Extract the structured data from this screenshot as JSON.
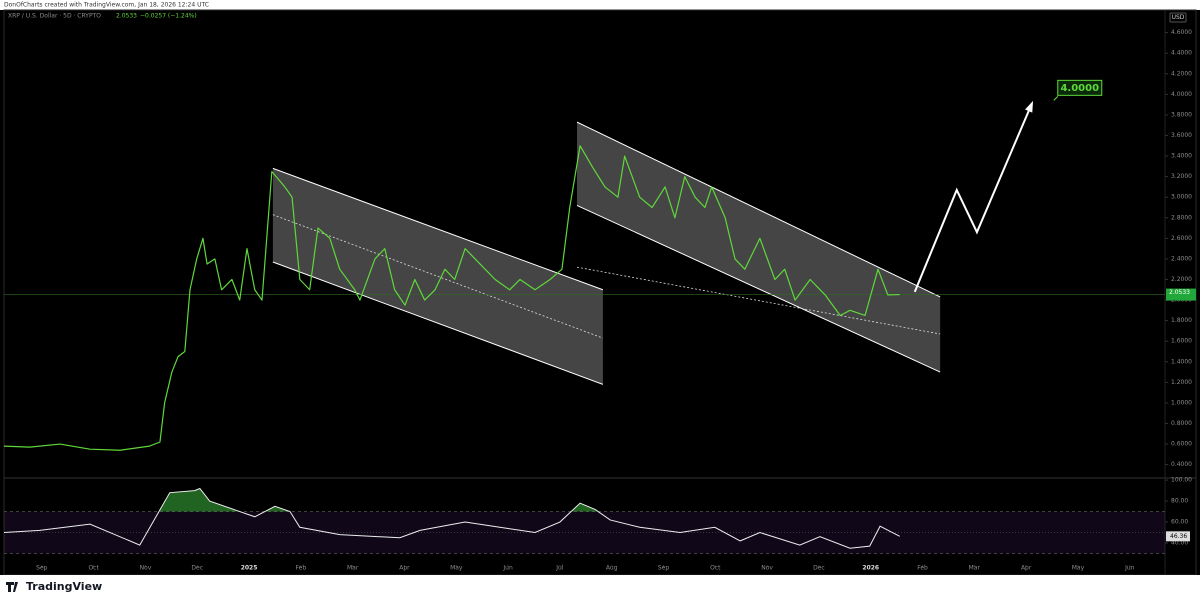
{
  "chart_data": {
    "type": "line",
    "credit": "DonOfCharts created with TradingView.com, Jan 18, 2026 12:24 UTC",
    "title": "XRP / U.S. Dollar · 5D · CRYPTO",
    "change": "−0.0257 (−1.24%)",
    "currency": "USD",
    "brand": "TradingView",
    "color": "#5fd83a",
    "xlim": [
      -0.73,
      21.68
    ],
    "xticks": [
      {
        "value": 0,
        "label": "Sep"
      },
      {
        "value": 1,
        "label": "Oct"
      },
      {
        "value": 2,
        "label": "Nov"
      },
      {
        "value": 3,
        "label": "Dec"
      },
      {
        "value": 4,
        "label": "2025"
      },
      {
        "value": 5,
        "label": "Feb"
      },
      {
        "value": 6,
        "label": "Mar"
      },
      {
        "value": 7,
        "label": "Apr"
      },
      {
        "value": 8,
        "label": "May"
      },
      {
        "value": 9,
        "label": "Jun"
      },
      {
        "value": 10,
        "label": "Jul"
      },
      {
        "value": 11,
        "label": "Aug"
      },
      {
        "value": 12,
        "label": "Sep"
      },
      {
        "value": 13,
        "label": "Oct"
      },
      {
        "value": 14,
        "label": "Nov"
      },
      {
        "value": 15,
        "label": "Dec"
      },
      {
        "value": 16,
        "label": "2026"
      },
      {
        "value": 17,
        "label": "Feb"
      },
      {
        "value": 18,
        "label": "Mar"
      },
      {
        "value": 19,
        "label": "Apr"
      },
      {
        "value": 20,
        "label": "May"
      },
      {
        "value": 21,
        "label": "Jun"
      }
    ],
    "ylim": [
      0.27,
      4.82
    ],
    "yticks": [
      {
        "value": 0.4,
        "label": "0.4000"
      },
      {
        "value": 0.6,
        "label": "0.6000"
      },
      {
        "value": 0.8,
        "label": "0.8000"
      },
      {
        "value": 1.0,
        "label": "1.0000"
      },
      {
        "value": 1.2,
        "label": "1.2000"
      },
      {
        "value": 1.4,
        "label": "1.4000"
      },
      {
        "value": 1.6,
        "label": "1.6000"
      },
      {
        "value": 1.8,
        "label": "1.8000"
      },
      {
        "value": 2.0,
        "label": "2.0000"
      },
      {
        "value": 2.2,
        "label": "2.2000"
      },
      {
        "value": 2.4,
        "label": "2.4000"
      },
      {
        "value": 2.6,
        "label": "2.6000"
      },
      {
        "value": 2.8,
        "label": "2.8000"
      },
      {
        "value": 3.0,
        "label": "3.0000"
      },
      {
        "value": 3.2,
        "label": "3.2000"
      },
      {
        "value": 3.4,
        "label": "3.4000"
      },
      {
        "value": 3.6,
        "label": "3.6000"
      },
      {
        "value": 3.8,
        "label": "3.8000"
      },
      {
        "value": 4.0,
        "label": "4.0000"
      },
      {
        "value": 4.2,
        "label": "4.2000"
      },
      {
        "value": 4.4,
        "label": "4.4000"
      },
      {
        "value": 4.6,
        "label": "4.6000"
      }
    ],
    "x": [
      -0.73,
      -0.23,
      0.35,
      0.93,
      1.51,
      2.08,
      2.28,
      2.37,
      2.51,
      2.63,
      2.76,
      2.86,
      2.99,
      3.11,
      3.19,
      3.34,
      3.47,
      3.67,
      3.82,
      3.96,
      4.11,
      4.25,
      4.44,
      4.69,
      4.83,
      4.98,
      5.17,
      5.33,
      5.56,
      5.75,
      6.04,
      6.14,
      6.43,
      6.62,
      6.81,
      7.01,
      7.2,
      7.39,
      7.59,
      7.78,
      7.97,
      8.17,
      8.46,
      8.75,
      9.03,
      9.23,
      9.52,
      9.81,
      10.04,
      10.19,
      10.39,
      10.62,
      10.87,
      11.12,
      11.25,
      11.54,
      11.78,
      12.03,
      12.22,
      12.41,
      12.61,
      12.8,
      12.93,
      13.19,
      13.38,
      13.57,
      13.86,
      14.15,
      14.34,
      14.54,
      14.83,
      15.12,
      15.41,
      15.6,
      15.89,
      16.14,
      16.33,
      16.56
    ],
    "values": [
      0.58,
      0.57,
      0.6,
      0.55,
      0.54,
      0.58,
      0.62,
      1.0,
      1.3,
      1.45,
      1.5,
      2.1,
      2.4,
      2.6,
      2.35,
      2.4,
      2.1,
      2.2,
      2.0,
      2.5,
      2.1,
      2.0,
      3.25,
      3.1,
      3.0,
      2.2,
      2.1,
      2.7,
      2.6,
      2.3,
      2.1,
      2.0,
      2.4,
      2.5,
      2.1,
      1.95,
      2.2,
      2.0,
      2.1,
      2.3,
      2.2,
      2.5,
      2.35,
      2.2,
      2.1,
      2.2,
      2.1,
      2.2,
      2.3,
      2.9,
      3.5,
      3.3,
      3.1,
      3.0,
      3.4,
      3.0,
      2.9,
      3.1,
      2.8,
      3.2,
      3.0,
      2.9,
      3.1,
      2.8,
      2.4,
      2.3,
      2.6,
      2.2,
      2.3,
      2.0,
      2.2,
      2.05,
      1.85,
      1.9,
      1.85,
      2.3,
      2.05,
      2.0533
    ],
    "channels": [
      {
        "x": [
          4.46,
          10.83
        ],
        "upper": [
          3.28,
          2.1
        ],
        "middle": [
          2.83,
          1.63
        ],
        "lower": [
          2.37,
          1.18
        ]
      },
      {
        "x": [
          10.33,
          17.34
        ],
        "upper": [
          3.73,
          2.03
        ],
        "middle": [
          2.32,
          1.67
        ],
        "lower": [
          2.92,
          1.3
        ]
      }
    ],
    "projection": {
      "x": [
        16.85,
        17.66,
        18.05,
        19.11
      ],
      "values": [
        2.08,
        3.07,
        2.66,
        3.91
      ]
    },
    "target": {
      "x": 19.61,
      "value": 4.0,
      "label": "4.0000"
    },
    "rsi": {
      "ylim": [
        19,
        102
      ],
      "yticks": [
        {
          "value": 100,
          "label": "100.00"
        },
        {
          "value": 80,
          "label": "80.00"
        },
        {
          "value": 60,
          "label": "60.00"
        },
        {
          "value": 40,
          "label": "40.00"
        }
      ],
      "bands": [
        30,
        50,
        70
      ],
      "x": [
        -0.73,
        -0.04,
        0.93,
        1.89,
        2.47,
        2.95,
        3.05,
        3.24,
        3.82,
        4.11,
        4.5,
        4.79,
        4.98,
        5.75,
        6.91,
        7.3,
        8.17,
        8.84,
        9.52,
        10.0,
        10.39,
        10.68,
        10.97,
        11.54,
        12.32,
        12.99,
        13.48,
        13.86,
        14.63,
        15.02,
        15.6,
        15.98,
        16.18,
        16.56
      ],
      "values": [
        50,
        52,
        58,
        38,
        88,
        90,
        92,
        80,
        70,
        65,
        75,
        70,
        55,
        48,
        45,
        52,
        60,
        55,
        50,
        60,
        78,
        72,
        62,
        55,
        50,
        55,
        42,
        50,
        38,
        46,
        35,
        37,
        56,
        46.36
      ]
    }
  }
}
